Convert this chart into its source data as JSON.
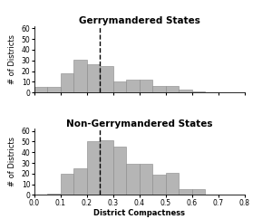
{
  "title_top": "Gerrymandered States",
  "title_bottom": "Non-Gerrymandered States",
  "xlabel": "District Compactness",
  "ylabel": "# of Districts",
  "bar_color": "#b5b5b5",
  "bar_edgecolor": "#888888",
  "dashed_line_x": 0.25,
  "bin_width": 0.05,
  "top_bar_starts": [
    0.0,
    0.05,
    0.1,
    0.15,
    0.2,
    0.25,
    0.3,
    0.35,
    0.4,
    0.45,
    0.5,
    0.55,
    0.6
  ],
  "top_bars": [
    5,
    5,
    18,
    31,
    26,
    25,
    10,
    12,
    12,
    6,
    6,
    3,
    1
  ],
  "bottom_bar_starts": [
    0.05,
    0.1,
    0.15,
    0.2,
    0.25,
    0.3,
    0.35,
    0.4,
    0.45,
    0.5,
    0.55,
    0.6
  ],
  "bottom_bars": [
    1,
    20,
    25,
    50,
    51,
    45,
    29,
    29,
    19,
    21,
    5,
    5
  ],
  "xlim": [
    0.0,
    0.8
  ],
  "ylim": [
    0,
    62
  ],
  "yticks": [
    0,
    10,
    20,
    30,
    40,
    50,
    60
  ],
  "xticks": [
    0.0,
    0.1,
    0.2,
    0.3,
    0.4,
    0.5,
    0.6,
    0.7,
    0.8
  ],
  "xticklabels": [
    "0.0",
    "0.1",
    "0.2",
    "0.3",
    "0.4",
    "0.5",
    "0.6",
    "0.7",
    "0.8"
  ],
  "title_fontsize": 7.5,
  "label_fontsize": 6,
  "tick_fontsize": 5.5
}
